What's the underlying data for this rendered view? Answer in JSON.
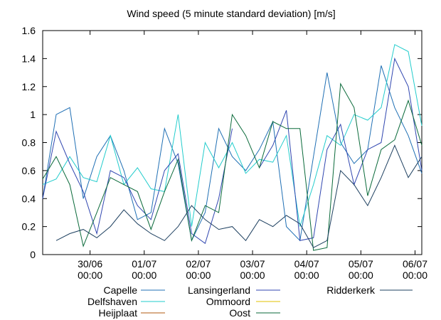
{
  "chart_data": {
    "type": "line",
    "title": "Wind speed (5 minute standard deviation) [m/s]",
    "x": [
      "29/06 03:00",
      "29/06 09:00",
      "29/06 15:00",
      "29/06 21:00",
      "30/06 03:00",
      "30/06 09:00",
      "30/06 15:00",
      "30/06 21:00",
      "01/07 03:00",
      "01/07 09:00",
      "01/07 15:00",
      "01/07 21:00",
      "02/07 03:00",
      "02/07 09:00",
      "02/07 15:00",
      "02/07 21:00",
      "03/07 03:00",
      "03/07 09:00",
      "03/07 15:00",
      "03/07 21:00",
      "04/07 03:00",
      "04/07 09:00",
      "04/07 15:00",
      "04/07 21:00",
      "05/07 03:00",
      "05/07 09:00",
      "05/07 15:00",
      "05/07 21:00",
      "06/07 03:00"
    ],
    "xlim": [
      "29/06 03:00",
      "06/07 03:00"
    ],
    "xticks": [
      "30/06 00:00",
      "01/07 00:00",
      "02/07 00:00",
      "03/07 00:00",
      "04/07 00:00",
      "05/07 00:00",
      "06/07 00:00"
    ],
    "ylim": [
      0,
      1.6
    ],
    "yticks": [
      0,
      0.2,
      0.4,
      0.6,
      0.8,
      1,
      1.2,
      1.4,
      1.6
    ],
    "series": [
      {
        "name": "Capelle",
        "color": "#1f6fb4",
        "values": [
          0.4,
          1.0,
          1.05,
          0.4,
          0.7,
          0.85,
          0.6,
          0.25,
          0.3,
          0.9,
          0.65,
          0.1,
          0.3,
          0.9,
          0.7,
          0.6,
          0.75,
          0.95,
          0.2,
          0.1,
          0.7,
          1.3,
          0.8,
          0.65,
          0.75,
          1.35,
          1.05,
          0.85,
          0.58
        ]
      },
      {
        "name": "Delfshaven",
        "color": "#22cccc",
        "values": [
          0.5,
          0.54,
          0.7,
          0.55,
          0.52,
          0.85,
          0.5,
          0.62,
          0.47,
          0.45,
          1.0,
          0.2,
          0.8,
          0.62,
          0.8,
          0.58,
          0.68,
          0.66,
          0.85,
          0.2,
          0.5,
          0.85,
          0.78,
          1.0,
          0.96,
          1.05,
          1.5,
          1.45,
          0.92
        ]
      },
      {
        "name": "Heijplaat",
        "color": "#b05a10",
        "values": [
          null,
          null,
          null,
          null,
          null,
          null,
          null,
          null,
          null,
          null,
          null,
          null,
          null,
          null,
          null,
          null,
          null,
          null,
          null,
          null,
          null,
          null,
          null,
          null,
          null,
          null,
          null,
          null,
          null
        ]
      },
      {
        "name": "Lansingerland",
        "color": "#3046b0",
        "values": [
          0.4,
          0.88,
          0.65,
          0.45,
          0.15,
          0.6,
          0.55,
          0.35,
          0.25,
          0.6,
          0.72,
          0.15,
          0.08,
          0.4,
          0.9,
          null,
          0.62,
          0.78,
          1.03,
          0.1,
          0.12,
          0.75,
          0.93,
          0.5,
          0.75,
          0.8,
          1.4,
          1.2,
          0.6
        ]
      },
      {
        "name": "Ommoord",
        "color": "#e0c000",
        "values": [
          null,
          null,
          null,
          null,
          null,
          null,
          null,
          null,
          null,
          null,
          null,
          null,
          null,
          null,
          null,
          null,
          null,
          null,
          null,
          null,
          null,
          null,
          null,
          null,
          null,
          null,
          null,
          null,
          null
        ]
      },
      {
        "name": "Oost",
        "color": "#0a6a3a",
        "values": [
          0.54,
          0.7,
          0.5,
          0.06,
          0.3,
          0.55,
          0.5,
          0.45,
          0.18,
          0.45,
          0.68,
          0.1,
          0.35,
          0.3,
          1.0,
          0.85,
          0.62,
          0.95,
          0.9,
          0.9,
          0.03,
          0.05,
          1.22,
          1.05,
          0.42,
          0.75,
          0.82,
          1.1,
          0.78
        ]
      },
      {
        "name": "Ridderkerk",
        "color": "#1e4060",
        "values": [
          null,
          0.1,
          0.15,
          0.18,
          0.12,
          0.2,
          0.32,
          0.22,
          0.15,
          0.1,
          0.2,
          0.35,
          0.25,
          0.18,
          0.2,
          0.1,
          0.25,
          0.2,
          0.28,
          0.22,
          0.05,
          0.1,
          0.6,
          0.5,
          0.35,
          0.55,
          0.78,
          0.55,
          0.7
        ]
      }
    ]
  }
}
